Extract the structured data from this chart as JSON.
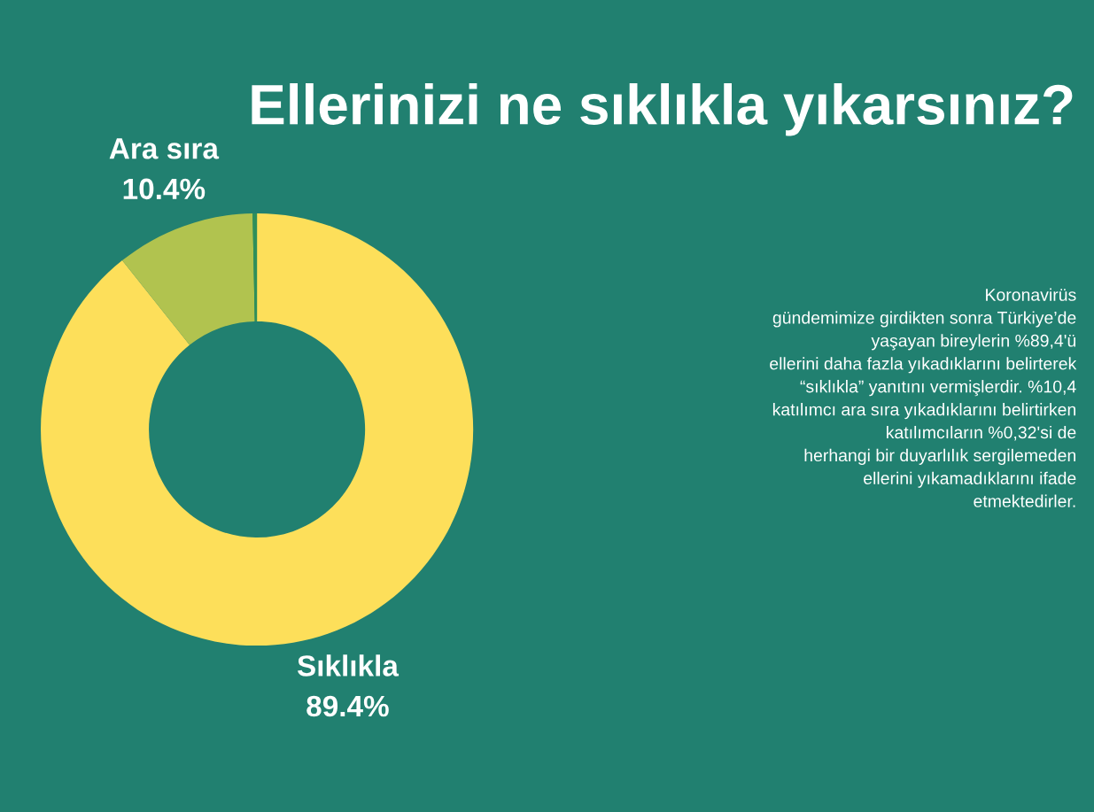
{
  "chart_data": {
    "type": "donut",
    "title": "Ellerinizi ne sıklıkla yıkarsınız?",
    "categories": [
      "Sıklıkla",
      "Ara sıra",
      null
    ],
    "values": [
      89.4,
      10.4,
      0.32
    ],
    "value_labels": [
      "89.4%",
      "10.4%",
      null
    ],
    "colors": [
      "#fddf5a",
      "#b1c34f",
      "#2f8f5a"
    ],
    "annotations": [
      "Koronavirüs\ngündemimize girdikten sonra Türkiye’de\nyaşayan bireylerin %89,4'ü\nellerini daha fazla yıkadıklarını belirterek\n“sıklıkla” yanıtını vermişlerdir. %10,4\nkatılımcı ara sıra yıkadıklarını belirtirken\nkatılımcıların %0,32'si de\nherhangi bir duyarlılık sergilemeden\nellerini yıkamadıklarını ifade\netmektedirler."
    ]
  }
}
